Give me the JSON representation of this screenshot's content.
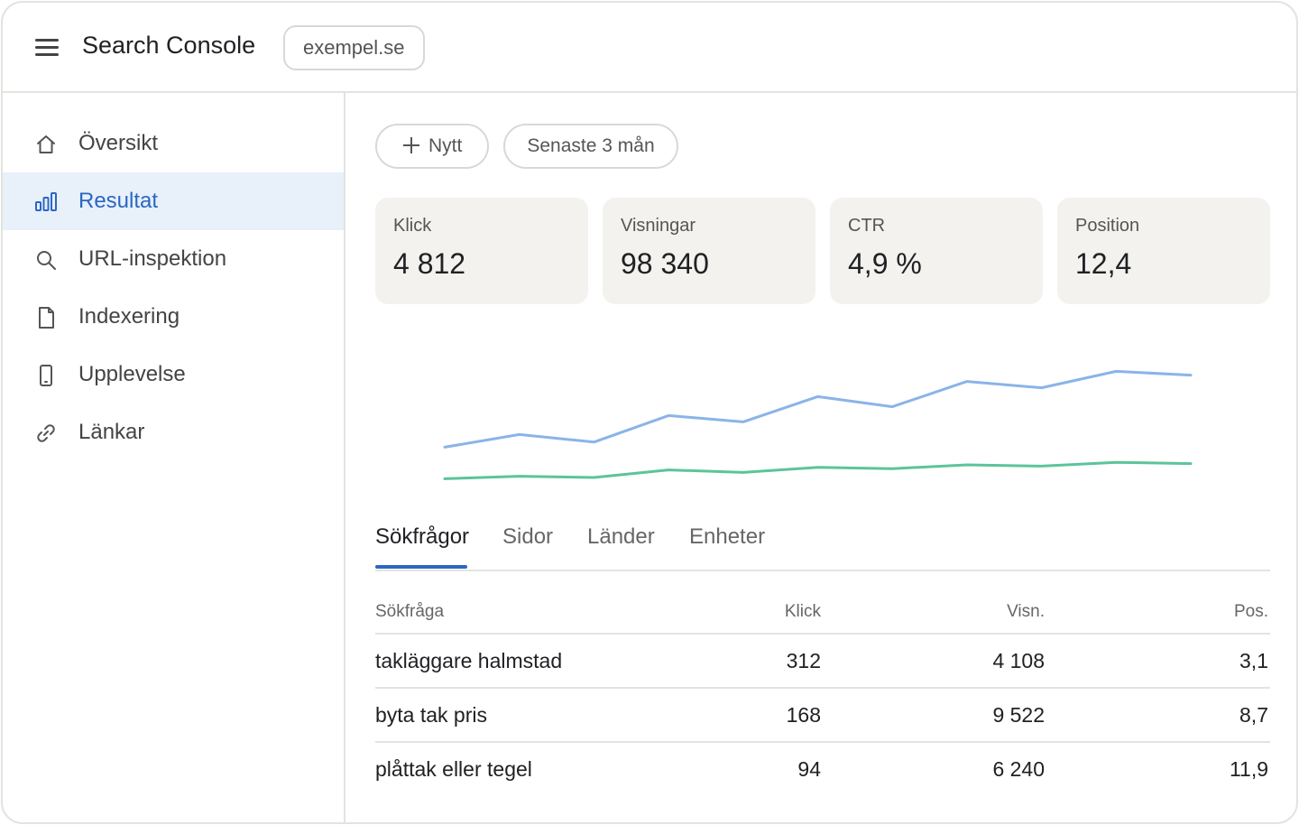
{
  "header": {
    "title": "Search Console",
    "property": "exempel.se"
  },
  "sidebar": {
    "items": [
      {
        "label": "Översikt",
        "icon": "home-icon"
      },
      {
        "label": "Resultat",
        "icon": "bar-chart-icon",
        "active": true
      },
      {
        "label": "URL-inspektion",
        "icon": "search-icon"
      },
      {
        "label": "Indexering",
        "icon": "document-icon"
      },
      {
        "label": "Upplevelse",
        "icon": "mobile-icon"
      },
      {
        "label": "Länkar",
        "icon": "link-icon"
      }
    ]
  },
  "toolbar": {
    "new_label": "Nytt",
    "range_label": "Senaste 3 mån"
  },
  "metrics": [
    {
      "label": "Klick",
      "value": "4 812"
    },
    {
      "label": "Visningar",
      "value": "98 340"
    },
    {
      "label": "CTR",
      "value": "4,9 %"
    },
    {
      "label": "Position",
      "value": "12,4"
    }
  ],
  "chart_data": {
    "type": "line",
    "x": [
      1,
      2,
      3,
      4,
      5,
      6,
      7,
      8,
      9,
      10,
      11
    ],
    "series": [
      {
        "values": [
          0.8,
          2.8,
          1.6,
          5.8,
          4.8,
          8.8,
          7.2,
          11.2,
          10.2,
          12.8,
          12.2
        ],
        "color": "#8ab4e8"
      },
      {
        "values": [
          -4.2,
          -3.8,
          -4.0,
          -2.8,
          -3.2,
          -2.4,
          -2.6,
          -2.0,
          -2.2,
          -1.6,
          -1.8
        ],
        "color": "#5cc49a"
      }
    ],
    "ylim": [
      -6,
      14
    ],
    "grid": false,
    "legend": "none"
  },
  "colors": {
    "accent": "#2b67c2",
    "active_bg": "#e8f0fa",
    "card_bg": "#f3f2ee"
  },
  "tabs": [
    {
      "label": "Sökfrågor",
      "active": true
    },
    {
      "label": "Sidor"
    },
    {
      "label": "Länder"
    },
    {
      "label": "Enheter"
    }
  ],
  "table": {
    "headers": {
      "query": "Sökfråga",
      "clicks": "Klick",
      "impressions": "Visn.",
      "position": "Pos."
    },
    "rows": [
      {
        "query": "takläggare halmstad",
        "clicks": "312",
        "impressions": "4 108",
        "position": "3,1"
      },
      {
        "query": "byta tak pris",
        "clicks": "168",
        "impressions": "9 522",
        "position": "8,7"
      },
      {
        "query": "plåttak eller tegel",
        "clicks": "94",
        "impressions": "6 240",
        "position": "11,9"
      }
    ]
  }
}
